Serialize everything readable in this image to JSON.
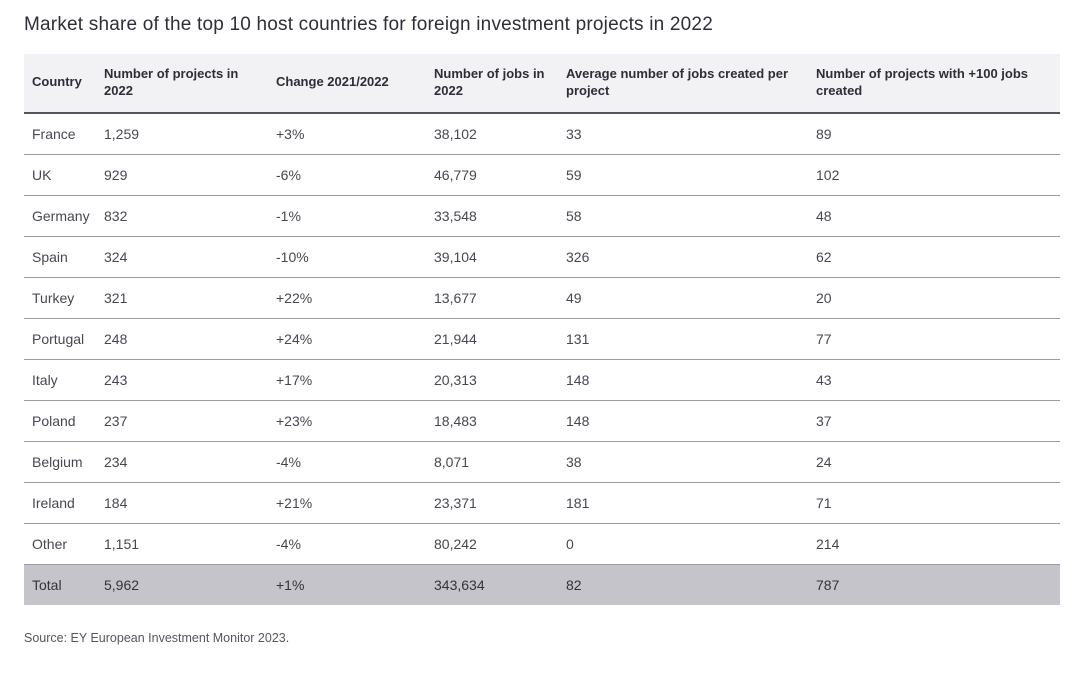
{
  "title": "Market share of the top 10 host countries for foreign investment projects in 2022",
  "source": "Source: EY European Investment Monitor 2023.",
  "colors": {
    "title_text": "#2e2e38",
    "body_text": "#474751",
    "header_bg": "#f2f1f3",
    "header_border": "#55555e",
    "row_border": "#9b9ba1",
    "total_bg": "#c5c4cb"
  },
  "chart_data": {
    "type": "table",
    "title": "Market share of the top 10 host countries for foreign investment projects in 2022",
    "columns": [
      "Country",
      "Number of projects in 2022",
      "Change 2021/2022",
      "Number of jobs in 2022",
      "Average number of jobs created per project",
      "Number of projects with +100 jobs created"
    ],
    "rows": [
      [
        "France",
        "1,259",
        "+3%",
        "38,102",
        "33",
        "89"
      ],
      [
        "UK",
        "929",
        "-6%",
        "46,779",
        "59",
        "102"
      ],
      [
        "Germany",
        "832",
        "-1%",
        "33,548",
        "58",
        "48"
      ],
      [
        "Spain",
        "324",
        "-10%",
        "39,104",
        "326",
        "62"
      ],
      [
        "Turkey",
        "321",
        "+22%",
        "13,677",
        "49",
        "20"
      ],
      [
        "Portugal",
        "248",
        "+24%",
        "21,944",
        "131",
        "77"
      ],
      [
        "Italy",
        "243",
        "+17%",
        "20,313",
        "148",
        "43"
      ],
      [
        "Poland",
        "237",
        "+23%",
        "18,483",
        "148",
        "37"
      ],
      [
        "Belgium",
        "234",
        "-4%",
        "8,071",
        "38",
        "24"
      ],
      [
        "Ireland",
        "184",
        "+21%",
        "23,371",
        "181",
        "71"
      ],
      [
        "Other",
        "1,151",
        "-4%",
        "80,242",
        "0",
        "214"
      ]
    ],
    "total_row": [
      "Total",
      "5,962",
      "+1%",
      "343,634",
      "82",
      "787"
    ]
  }
}
